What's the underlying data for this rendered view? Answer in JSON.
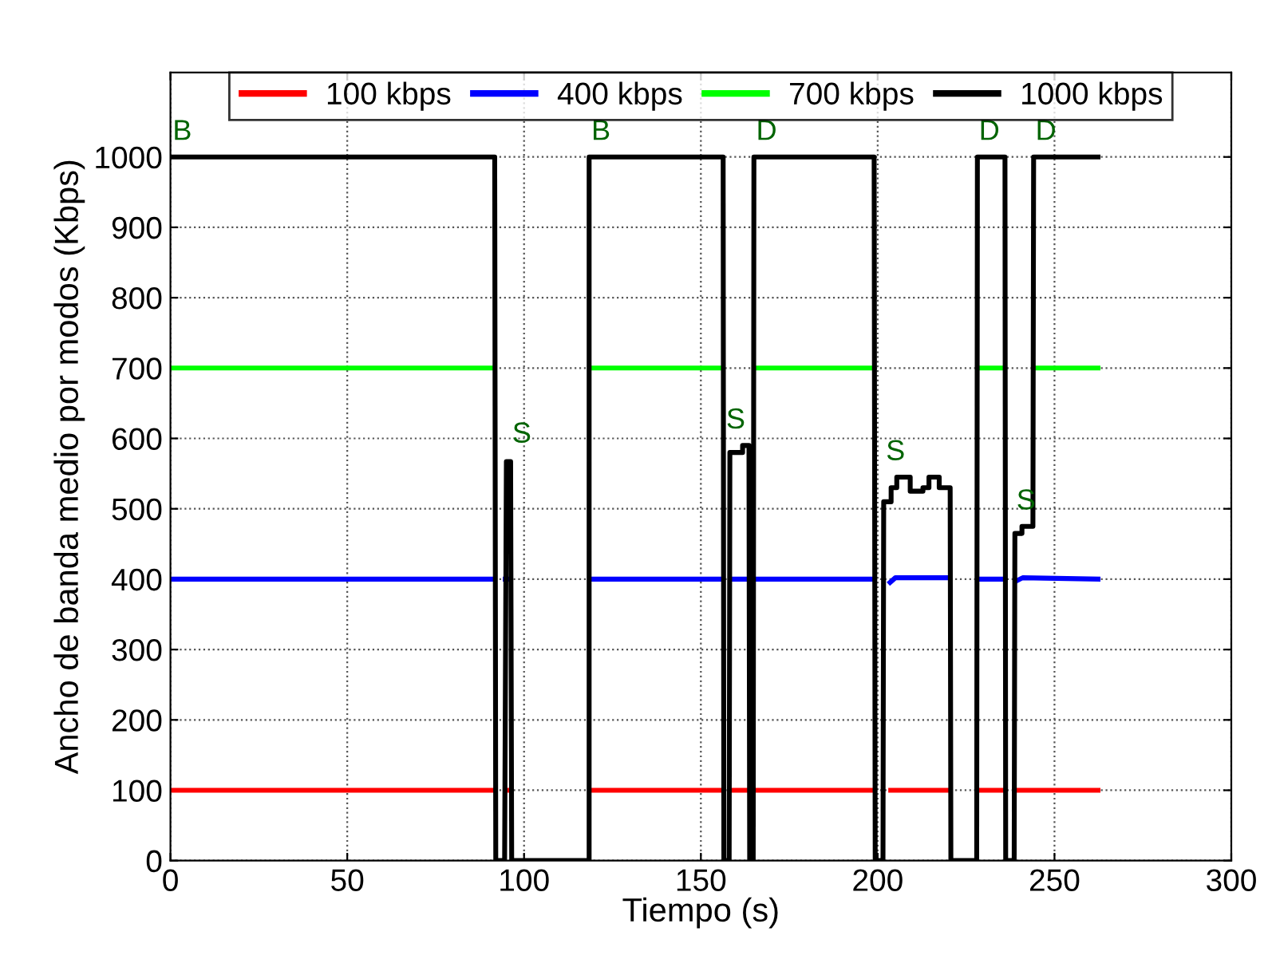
{
  "chart_data": {
    "type": "line",
    "xlabel": "Tiempo (s)",
    "ylabel": "Ancho de banda medio por modos (Kbps)",
    "xlim": [
      0,
      300
    ],
    "xticks": [
      0,
      50,
      100,
      150,
      200,
      250,
      300
    ],
    "ylim": [
      0,
      1120
    ],
    "yticks": [
      0,
      100,
      200,
      300,
      400,
      500,
      600,
      700,
      800,
      900,
      1000
    ],
    "grid": true,
    "legend": "top",
    "line_style": "solid",
    "marker": "none",
    "series": [
      {
        "name": "100 kbps",
        "color": "#ff0000",
        "x": [
          0,
          92,
          null,
          94,
          96,
          null,
          118.4,
          156.3,
          null,
          158,
          163.6,
          null,
          164.8,
          199,
          null,
          203,
          220.5,
          null,
          228,
          236,
          null,
          238.6,
          263
        ],
        "values": [
          100,
          100,
          null,
          100,
          100,
          null,
          100,
          100,
          null,
          100,
          100,
          null,
          100,
          100,
          null,
          100,
          100,
          null,
          100,
          100,
          null,
          100,
          100
        ]
      },
      {
        "name": "400 kbps",
        "color": "#0000ff",
        "x": [
          0,
          92,
          null,
          94,
          96,
          null,
          118.4,
          156.3,
          null,
          158,
          163.6,
          null,
          164.8,
          199,
          null,
          203,
          205,
          220.5,
          null,
          228,
          236,
          null,
          238.6,
          241,
          263
        ],
        "values": [
          400,
          400,
          null,
          400,
          400,
          null,
          400,
          400,
          null,
          400,
          400,
          null,
          400,
          400,
          null,
          393,
          402,
          402,
          null,
          400,
          400,
          null,
          396,
          402,
          400
        ]
      },
      {
        "name": "700 kbps",
        "color": "#00ff00",
        "x": [
          0,
          92,
          null,
          118.4,
          156.3,
          null,
          164.8,
          199,
          null,
          228,
          236,
          null,
          243.9,
          263
        ],
        "values": [
          700,
          700,
          null,
          700,
          700,
          null,
          700,
          700,
          null,
          700,
          700,
          null,
          700,
          700
        ]
      },
      {
        "name": "1000 kbps",
        "color": "#000000",
        "x": [
          0,
          91.7,
          92,
          94.5,
          95,
          96.2,
          96.5,
          118.4,
          118.4,
          156.3,
          156.5,
          158,
          158.2,
          161.8,
          161.8,
          163.6,
          163.8,
          164.8,
          165,
          199,
          199.3,
          201.5,
          201.7,
          203.8,
          203.8,
          205.4,
          205.4,
          209.2,
          209.2,
          212.8,
          212.8,
          214.5,
          214.5,
          217.4,
          217.4,
          220.5,
          220.7,
          228,
          228.2,
          236,
          236.2,
          238.6,
          238.8,
          240.8,
          240.8,
          243.9,
          244.1,
          263
        ],
        "values": [
          1000,
          1000,
          0,
          0,
          567,
          567,
          0,
          0,
          1000,
          1000,
          0,
          0,
          580,
          580,
          590,
          590,
          0,
          0,
          1000,
          1000,
          0,
          0,
          510,
          510,
          530,
          530,
          545,
          545,
          525,
          525,
          530,
          530,
          545,
          545,
          530,
          530,
          0,
          0,
          1000,
          1000,
          0,
          0,
          465,
          465,
          475,
          475,
          1000,
          1000
        ]
      }
    ],
    "annotations": [
      {
        "text": "B",
        "x": 0,
        "y": 1000
      },
      {
        "text": "S",
        "x": 96,
        "y": 570
      },
      {
        "text": "B",
        "x": 118.4,
        "y": 1000
      },
      {
        "text": "S",
        "x": 156.5,
        "y": 590
      },
      {
        "text": "D",
        "x": 165,
        "y": 1000
      },
      {
        "text": "S",
        "x": 201.7,
        "y": 545
      },
      {
        "text": "D",
        "x": 228,
        "y": 1000
      },
      {
        "text": "S",
        "x": 238.6,
        "y": 475
      },
      {
        "text": "D",
        "x": 244,
        "y": 1000
      }
    ]
  }
}
